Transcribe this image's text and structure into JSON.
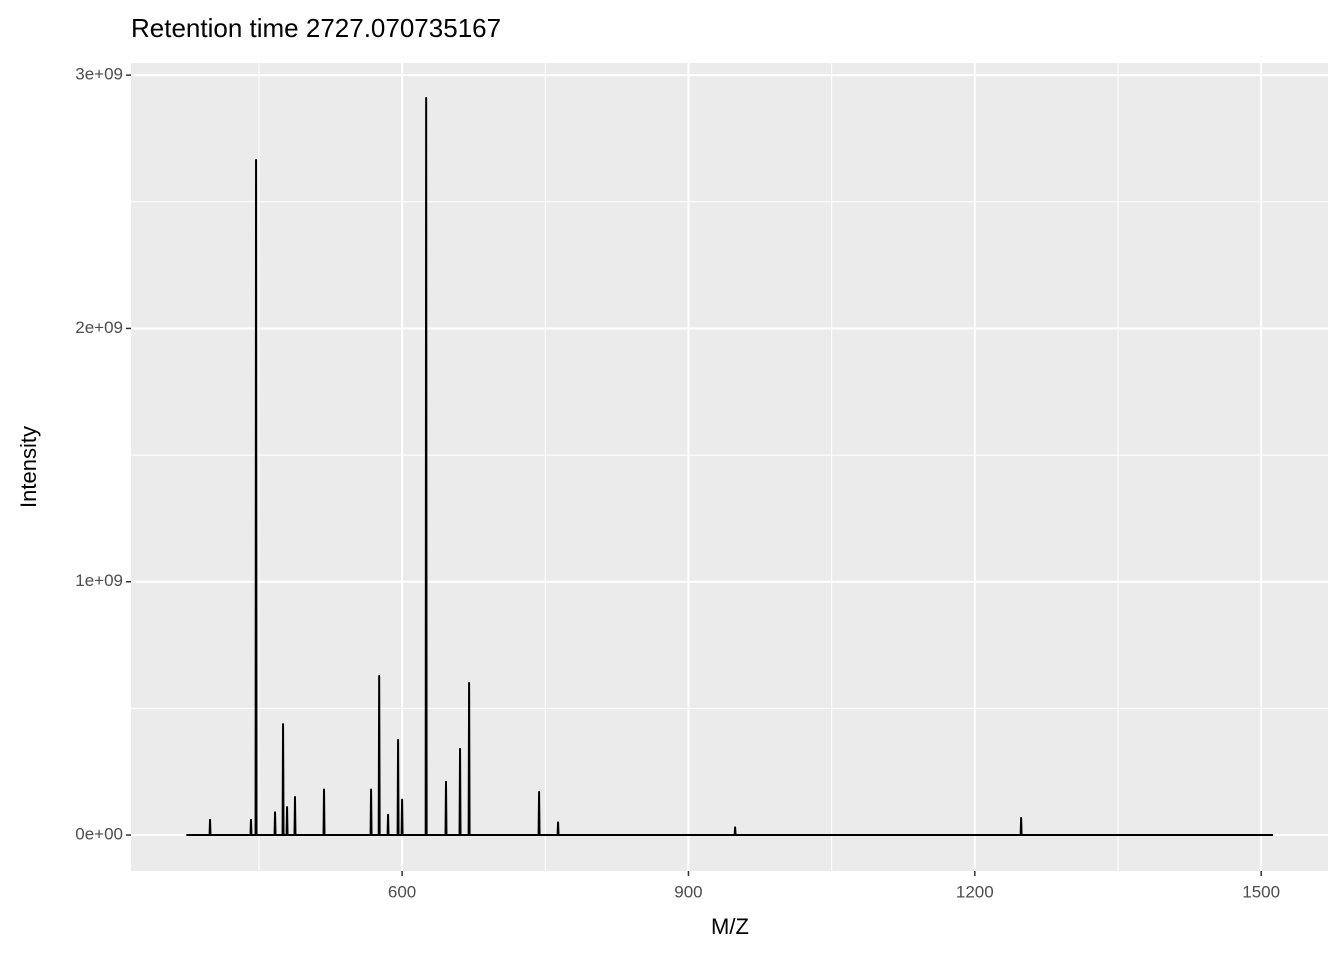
{
  "chart_data": {
    "type": "line",
    "title": "Retention time 2727.070735167",
    "x_label": "M/Z",
    "y_label": "Intensity",
    "xlim": [
      316,
      1570
    ],
    "ylim": [
      -142000000,
      3048000000
    ],
    "xticks": [
      600,
      900,
      1200,
      1500
    ],
    "yticks": [
      {
        "value": 0,
        "label": "0e+00"
      },
      {
        "value": 1000000000,
        "label": "1e+09"
      },
      {
        "value": 2000000000,
        "label": "2e+09"
      },
      {
        "value": 3000000000,
        "label": "3e+09"
      }
    ],
    "x_minor_ticks": [
      450,
      750,
      1050,
      1350
    ],
    "y_minor_ticks": [
      500000000,
      1500000000,
      2500000000
    ],
    "grid": true,
    "series": [
      {
        "color": "#000000",
        "x": [
          374,
          398.3,
          398.8,
          399.3,
          441.2,
          441.7,
          442.2,
          446.5,
          447,
          447.5,
          466.4,
          466.9,
          467.4,
          474.8,
          475.3,
          475.8,
          479,
          479.5,
          480,
          487.3,
          487.8,
          488.3,
          517.7,
          518.2,
          518.7,
          567,
          567.5,
          568,
          575.5,
          576,
          576.5,
          584.8,
          585.3,
          585.8,
          595.3,
          595.8,
          596.3,
          599.5,
          600,
          600.5,
          624.7,
          625.2,
          625.7,
          645.5,
          646,
          646.5,
          660.2,
          660.7,
          661.2,
          669.7,
          670.2,
          670.7,
          743,
          743.5,
          744,
          762.9,
          763.4,
          763.9,
          948.4,
          948.9,
          949.4,
          1248,
          1248.5,
          1249,
          1512.5
        ],
        "values": [
          0,
          0,
          60000000,
          0,
          0,
          60000000,
          0,
          0,
          2665000000,
          0,
          0,
          90000000,
          0,
          0,
          438000000,
          0,
          0,
          110000000,
          0,
          0,
          150000000,
          0,
          0,
          180000000,
          0,
          0,
          180000000,
          0,
          0,
          628000000,
          0,
          0,
          80000000,
          0,
          0,
          375000000,
          0,
          0,
          140000000,
          0,
          0,
          2910000000,
          0,
          0,
          210000000,
          0,
          0,
          340000000,
          0,
          0,
          600000000,
          0,
          0,
          170000000,
          0,
          0,
          50000000,
          0,
          0,
          30000000,
          0,
          0,
          67000000,
          0,
          0
        ]
      }
    ]
  }
}
